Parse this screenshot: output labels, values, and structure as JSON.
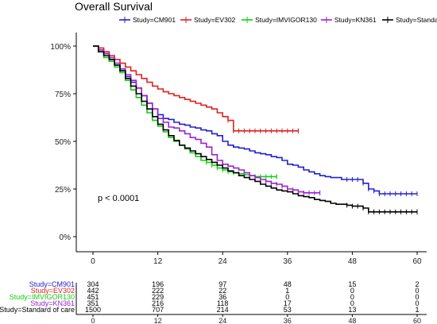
{
  "chart_data": {
    "type": "line",
    "title": "Overall Survival",
    "xlabel": "",
    "ylabel": "",
    "xlim": [
      0,
      60
    ],
    "ylim": [
      0,
      1
    ],
    "x_ticks": [
      0,
      12,
      24,
      36,
      48,
      60
    ],
    "y_ticks": [
      0,
      0.25,
      0.5,
      0.75,
      1
    ],
    "y_tick_labels": [
      "0%",
      "25%",
      "50%",
      "75%",
      "100%"
    ],
    "legend_position": "top",
    "grid": false,
    "annotation": "p < 0.0001",
    "series": [
      {
        "name": "Study=CM901",
        "color": "#2020d0",
        "points": [
          [
            0,
            1.0
          ],
          [
            1,
            0.98
          ],
          [
            2,
            0.96
          ],
          [
            3,
            0.93
          ],
          [
            4,
            0.9
          ],
          [
            5,
            0.87
          ],
          [
            6,
            0.84
          ],
          [
            7,
            0.81
          ],
          [
            8,
            0.78
          ],
          [
            9,
            0.74
          ],
          [
            10,
            0.7
          ],
          [
            11,
            0.67
          ],
          [
            12,
            0.64
          ],
          [
            13,
            0.62
          ],
          [
            14,
            0.615
          ],
          [
            15,
            0.6
          ],
          [
            16,
            0.59
          ],
          [
            17,
            0.585
          ],
          [
            18,
            0.575
          ],
          [
            19,
            0.57
          ],
          [
            20,
            0.56
          ],
          [
            21,
            0.555
          ],
          [
            22,
            0.54
          ],
          [
            23,
            0.53
          ],
          [
            24,
            0.5
          ],
          [
            25,
            0.48
          ],
          [
            26,
            0.47
          ],
          [
            27,
            0.465
          ],
          [
            28,
            0.46
          ],
          [
            29,
            0.45
          ],
          [
            30,
            0.44
          ],
          [
            31,
            0.435
          ],
          [
            32,
            0.43
          ],
          [
            33,
            0.42
          ],
          [
            34,
            0.415
          ],
          [
            35,
            0.4
          ],
          [
            36,
            0.38
          ],
          [
            37,
            0.375
          ],
          [
            38,
            0.365
          ],
          [
            39,
            0.35
          ],
          [
            40,
            0.34
          ],
          [
            41,
            0.33
          ],
          [
            42,
            0.32
          ],
          [
            43,
            0.315
          ],
          [
            44,
            0.31
          ],
          [
            45,
            0.31
          ],
          [
            46,
            0.3
          ],
          [
            47,
            0.3
          ],
          [
            48,
            0.3
          ],
          [
            49,
            0.3
          ],
          [
            50,
            0.28
          ],
          [
            51,
            0.25
          ],
          [
            52,
            0.24
          ],
          [
            53,
            0.225
          ],
          [
            54,
            0.225
          ],
          [
            55,
            0.225
          ],
          [
            56,
            0.225
          ],
          [
            57,
            0.225
          ],
          [
            58,
            0.225
          ],
          [
            59,
            0.225
          ],
          [
            60,
            0.225
          ]
        ]
      },
      {
        "name": "Study=EV302",
        "color": "#e02020",
        "points": [
          [
            0,
            1.0
          ],
          [
            1,
            0.99
          ],
          [
            2,
            0.97
          ],
          [
            3,
            0.95
          ],
          [
            4,
            0.93
          ],
          [
            5,
            0.91
          ],
          [
            6,
            0.89
          ],
          [
            7,
            0.87
          ],
          [
            8,
            0.85
          ],
          [
            9,
            0.83
          ],
          [
            10,
            0.81
          ],
          [
            11,
            0.79
          ],
          [
            12,
            0.775
          ],
          [
            13,
            0.76
          ],
          [
            14,
            0.75
          ],
          [
            15,
            0.74
          ],
          [
            16,
            0.73
          ],
          [
            17,
            0.72
          ],
          [
            18,
            0.71
          ],
          [
            19,
            0.7
          ],
          [
            20,
            0.69
          ],
          [
            21,
            0.68
          ],
          [
            22,
            0.67
          ],
          [
            23,
            0.65
          ],
          [
            24,
            0.63
          ],
          [
            25,
            0.61
          ],
          [
            26,
            0.555
          ],
          [
            27,
            0.555
          ],
          [
            28,
            0.555
          ],
          [
            29,
            0.555
          ],
          [
            30,
            0.555
          ],
          [
            31,
            0.555
          ],
          [
            32,
            0.555
          ],
          [
            33,
            0.555
          ],
          [
            34,
            0.555
          ],
          [
            35,
            0.555
          ],
          [
            36,
            0.555
          ],
          [
            37,
            0.555
          ],
          [
            38,
            0.555
          ]
        ]
      },
      {
        "name": "Study=IMVIGOR130",
        "color": "#10d010",
        "points": [
          [
            0,
            1.0
          ],
          [
            1,
            0.97
          ],
          [
            2,
            0.94
          ],
          [
            3,
            0.92
          ],
          [
            4,
            0.89
          ],
          [
            5,
            0.86
          ],
          [
            6,
            0.82
          ],
          [
            7,
            0.77
          ],
          [
            8,
            0.73
          ],
          [
            9,
            0.69
          ],
          [
            10,
            0.65
          ],
          [
            11,
            0.61
          ],
          [
            12,
            0.58
          ],
          [
            13,
            0.55
          ],
          [
            14,
            0.52
          ],
          [
            15,
            0.5
          ],
          [
            16,
            0.48
          ],
          [
            17,
            0.46
          ],
          [
            18,
            0.44
          ],
          [
            19,
            0.42
          ],
          [
            20,
            0.4
          ],
          [
            21,
            0.39
          ],
          [
            22,
            0.375
          ],
          [
            23,
            0.36
          ],
          [
            24,
            0.35
          ],
          [
            25,
            0.34
          ],
          [
            26,
            0.335
          ],
          [
            27,
            0.33
          ],
          [
            28,
            0.325
          ],
          [
            29,
            0.32
          ],
          [
            30,
            0.315
          ],
          [
            31,
            0.315
          ],
          [
            32,
            0.315
          ],
          [
            33,
            0.315
          ],
          [
            34,
            0.315
          ]
        ]
      },
      {
        "name": "Study=KN361",
        "color": "#a020d0",
        "points": [
          [
            0,
            1.0
          ],
          [
            1,
            0.98
          ],
          [
            2,
            0.96
          ],
          [
            3,
            0.94
          ],
          [
            4,
            0.91
          ],
          [
            5,
            0.88
          ],
          [
            6,
            0.85
          ],
          [
            7,
            0.82
          ],
          [
            8,
            0.78
          ],
          [
            9,
            0.74
          ],
          [
            10,
            0.7
          ],
          [
            11,
            0.67
          ],
          [
            12,
            0.62
          ],
          [
            13,
            0.6
          ],
          [
            14,
            0.575
          ],
          [
            15,
            0.57
          ],
          [
            16,
            0.555
          ],
          [
            17,
            0.54
          ],
          [
            18,
            0.52
          ],
          [
            19,
            0.51
          ],
          [
            20,
            0.49
          ],
          [
            21,
            0.47
          ],
          [
            22,
            0.43
          ],
          [
            23,
            0.4
          ],
          [
            24,
            0.38
          ],
          [
            25,
            0.37
          ],
          [
            26,
            0.36
          ],
          [
            27,
            0.35
          ],
          [
            28,
            0.335
          ],
          [
            29,
            0.32
          ],
          [
            30,
            0.31
          ],
          [
            31,
            0.3
          ],
          [
            32,
            0.29
          ],
          [
            33,
            0.28
          ],
          [
            34,
            0.275
          ],
          [
            35,
            0.265
          ],
          [
            36,
            0.25
          ],
          [
            37,
            0.245
          ],
          [
            38,
            0.235
          ],
          [
            39,
            0.23
          ],
          [
            40,
            0.23
          ],
          [
            41,
            0.23
          ],
          [
            42,
            0.23
          ]
        ]
      },
      {
        "name": "Study=Standard of care",
        "color": "#000000",
        "points": [
          [
            0,
            1.0
          ],
          [
            1,
            0.97
          ],
          [
            2,
            0.95
          ],
          [
            3,
            0.93
          ],
          [
            4,
            0.9
          ],
          [
            5,
            0.87
          ],
          [
            6,
            0.83
          ],
          [
            7,
            0.79
          ],
          [
            8,
            0.75
          ],
          [
            9,
            0.71
          ],
          [
            10,
            0.67
          ],
          [
            11,
            0.63
          ],
          [
            12,
            0.59
          ],
          [
            13,
            0.56
          ],
          [
            14,
            0.53
          ],
          [
            15,
            0.505
          ],
          [
            16,
            0.48
          ],
          [
            17,
            0.465
          ],
          [
            18,
            0.45
          ],
          [
            19,
            0.435
          ],
          [
            20,
            0.42
          ],
          [
            21,
            0.405
          ],
          [
            22,
            0.39
          ],
          [
            23,
            0.375
          ],
          [
            24,
            0.36
          ],
          [
            25,
            0.345
          ],
          [
            26,
            0.335
          ],
          [
            27,
            0.32
          ],
          [
            28,
            0.31
          ],
          [
            29,
            0.3
          ],
          [
            30,
            0.29
          ],
          [
            31,
            0.275
          ],
          [
            32,
            0.265
          ],
          [
            33,
            0.255
          ],
          [
            34,
            0.245
          ],
          [
            35,
            0.24
          ],
          [
            36,
            0.235
          ],
          [
            37,
            0.225
          ],
          [
            38,
            0.215
          ],
          [
            39,
            0.21
          ],
          [
            40,
            0.205
          ],
          [
            41,
            0.195
          ],
          [
            42,
            0.19
          ],
          [
            43,
            0.185
          ],
          [
            44,
            0.175
          ],
          [
            45,
            0.17
          ],
          [
            46,
            0.17
          ],
          [
            47,
            0.165
          ],
          [
            48,
            0.16
          ],
          [
            49,
            0.16
          ],
          [
            50,
            0.15
          ],
          [
            51,
            0.13
          ],
          [
            52,
            0.13
          ],
          [
            53,
            0.13
          ],
          [
            54,
            0.13
          ],
          [
            55,
            0.13
          ],
          [
            56,
            0.13
          ],
          [
            57,
            0.13
          ],
          [
            58,
            0.13
          ],
          [
            59,
            0.13
          ],
          [
            60,
            0.13
          ]
        ]
      }
    ],
    "risk_table": {
      "times": [
        0,
        12,
        24,
        36,
        48,
        60
      ],
      "rows": [
        {
          "label": "Study=CM901",
          "color": "#2020d0",
          "values": [
            "304",
            "196",
            "97",
            "48",
            "15",
            "2"
          ]
        },
        {
          "label": "Study=EV302",
          "color": "#e02020",
          "values": [
            "442",
            "222",
            "22",
            "1",
            "0",
            "0"
          ]
        },
        {
          "label": "Study=IMVIGOR130",
          "color": "#10d010",
          "values": [
            "451",
            "229",
            "36",
            "0",
            "0",
            "0"
          ]
        },
        {
          "label": "Study=KN361",
          "color": "#a020d0",
          "values": [
            "351",
            "216",
            "118",
            "17",
            "0",
            "0"
          ]
        },
        {
          "label": "Study=Standard of care",
          "color": "#000000",
          "values": [
            "1500",
            "707",
            "214",
            "53",
            "13",
            "1"
          ]
        }
      ],
      "x_tick_labels": [
        "0",
        "12",
        "24",
        "36",
        "48",
        "60"
      ]
    }
  }
}
